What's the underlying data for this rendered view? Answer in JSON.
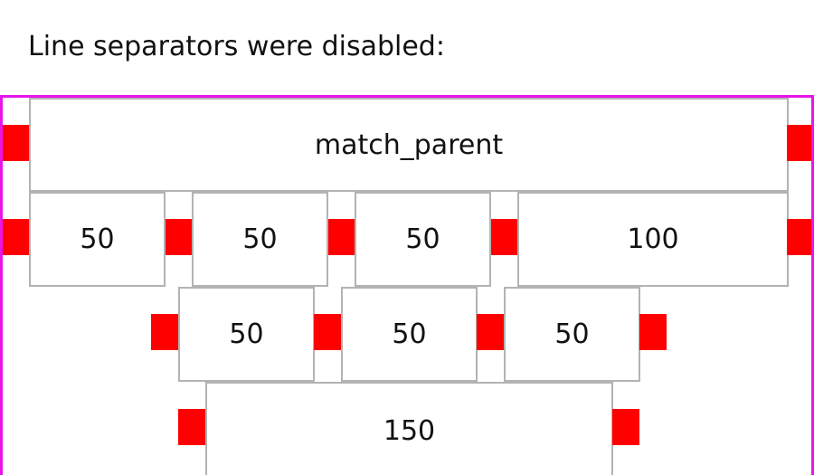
{
  "heading": "Line separators were disabled:",
  "colors": {
    "container_border": "#e815e8",
    "separator": "#ff0000",
    "item_border": "#b3b3b3",
    "text": "#111111"
  },
  "rows": [
    {
      "items": [
        {
          "label": "match_parent"
        }
      ]
    },
    {
      "items": [
        {
          "label": "50"
        },
        {
          "label": "50"
        },
        {
          "label": "50"
        },
        {
          "label": "100"
        }
      ]
    },
    {
      "items": [
        {
          "label": "50"
        },
        {
          "label": "50"
        },
        {
          "label": "50"
        }
      ]
    },
    {
      "items": [
        {
          "label": "150"
        }
      ]
    }
  ]
}
